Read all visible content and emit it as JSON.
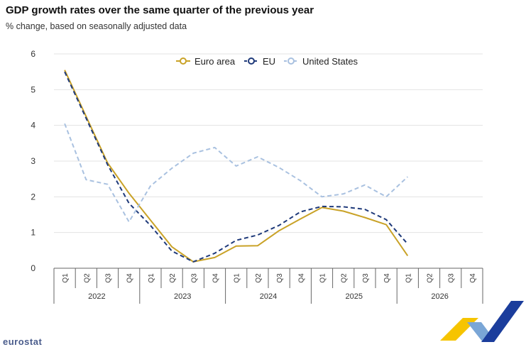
{
  "title": "GDP growth rates over the same quarter of the previous year",
  "subtitle": "% change, based on seasonally adjusted data",
  "brand": "eurostat",
  "chart_data": {
    "type": "line",
    "xlabel": "",
    "ylabel": "",
    "ylim": [
      0,
      6
    ],
    "yticks": [
      0,
      1,
      2,
      3,
      4,
      5,
      6
    ],
    "grid": true,
    "legend_position": "top",
    "quarters": [
      "Q1",
      "Q2",
      "Q3",
      "Q4",
      "Q1",
      "Q2",
      "Q3",
      "Q4",
      "Q1",
      "Q2",
      "Q3",
      "Q4",
      "Q1",
      "Q2",
      "Q3",
      "Q4",
      "Q1",
      "Q2",
      "Q3",
      "Q4"
    ],
    "years": [
      "2022",
      "2023",
      "2024",
      "2025",
      "2026"
    ],
    "series": [
      {
        "name": "Euro area",
        "color": "#c9a227",
        "dash": "solid",
        "values": [
          5.55,
          4.25,
          2.95,
          2.1,
          1.35,
          0.6,
          0.18,
          0.3,
          0.62,
          0.63,
          1.05,
          1.38,
          1.7,
          1.6,
          1.42,
          1.22,
          0.35,
          null,
          null,
          null
        ]
      },
      {
        "name": "EU",
        "color": "#1f3a7a",
        "dash": "dashed",
        "values": [
          5.5,
          4.2,
          2.9,
          1.82,
          1.2,
          0.48,
          0.18,
          0.42,
          0.78,
          0.93,
          1.2,
          1.58,
          1.73,
          1.72,
          1.65,
          1.36,
          0.68,
          null,
          null,
          null
        ]
      },
      {
        "name": "United States",
        "color": "#a9c1e0",
        "dash": "dashed",
        "values": [
          4.05,
          2.48,
          2.35,
          1.3,
          2.3,
          2.8,
          3.22,
          3.38,
          2.86,
          3.12,
          2.82,
          2.45,
          2.0,
          2.08,
          2.33,
          2.0,
          2.56,
          null,
          null,
          null
        ]
      }
    ]
  }
}
